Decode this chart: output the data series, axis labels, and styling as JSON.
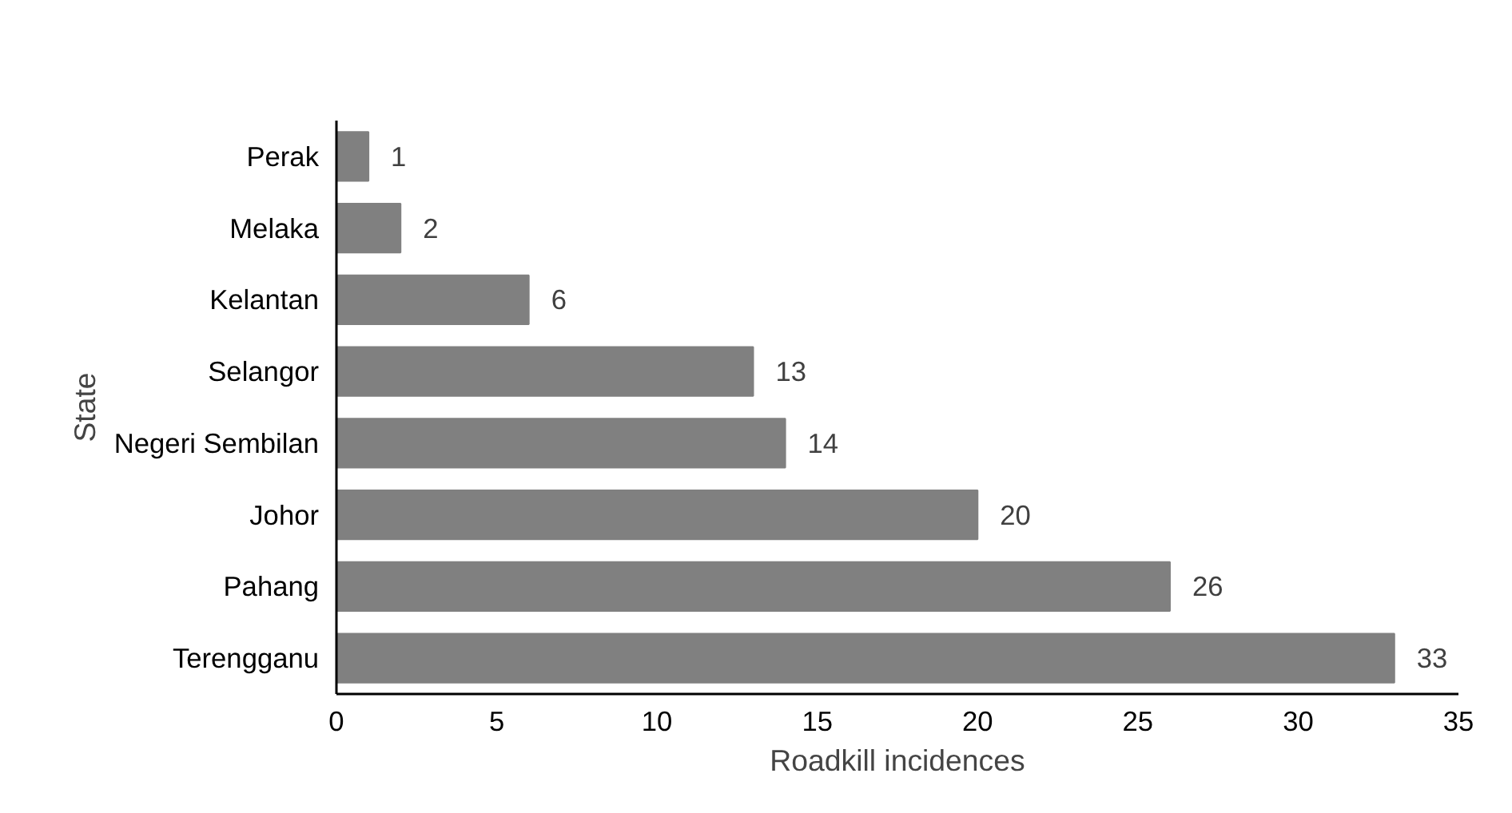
{
  "chart_data": {
    "type": "bar",
    "orientation": "horizontal",
    "xlabel": "Roadkill incidences",
    "ylabel": "State",
    "categories": [
      "Perak",
      "Melaka",
      "Kelantan",
      "Selangor",
      "Negeri Sembilan",
      "Johor",
      "Pahang",
      "Terengganu"
    ],
    "values": [
      1,
      2,
      6,
      13,
      14,
      20,
      26,
      33
    ],
    "color": "#808080",
    "xlim": [
      0,
      35
    ],
    "xticks": [
      0,
      5,
      10,
      15,
      20,
      25,
      30,
      35
    ],
    "grid": false,
    "data_labels": true
  }
}
